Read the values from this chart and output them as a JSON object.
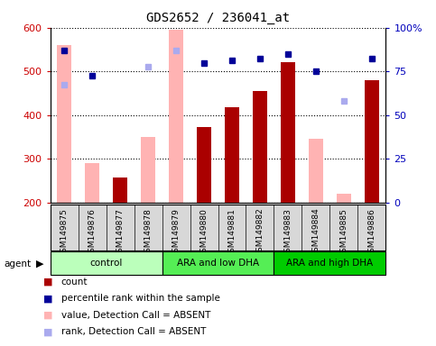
{
  "title": "GDS2652 / 236041_at",
  "samples": [
    "GSM149875",
    "GSM149876",
    "GSM149877",
    "GSM149878",
    "GSM149879",
    "GSM149880",
    "GSM149881",
    "GSM149882",
    "GSM149883",
    "GSM149884",
    "GSM149885",
    "GSM149886"
  ],
  "absent_value_bars": [
    560,
    290,
    null,
    350,
    595,
    null,
    null,
    null,
    null,
    345,
    220,
    null
  ],
  "present_value_bars": [
    null,
    null,
    258,
    null,
    null,
    373,
    418,
    455,
    522,
    null,
    null,
    480
  ],
  "absent_rank_dots": [
    470,
    null,
    null,
    510,
    548,
    null,
    null,
    null,
    null,
    null,
    432,
    null
  ],
  "present_rank_dots": [
    548,
    490,
    null,
    null,
    null,
    520,
    525,
    530,
    540,
    500,
    null,
    530
  ],
  "ylim_left": [
    200,
    600
  ],
  "yticks_left": [
    200,
    300,
    400,
    500,
    600
  ],
  "yticks_right": [
    0,
    25,
    50,
    75,
    100
  ],
  "right_tick_labels": [
    "0",
    "25",
    "50",
    "75",
    "100%"
  ],
  "absent_bar_color": "#ffb3b3",
  "present_bar_color": "#aa0000",
  "present_dot_color": "#000099",
  "absent_dot_color": "#aaaaee",
  "legend_items": [
    {
      "color": "#aa0000",
      "label": "count"
    },
    {
      "color": "#000099",
      "label": "percentile rank within the sample"
    },
    {
      "color": "#ffb3b3",
      "label": "value, Detection Call = ABSENT"
    },
    {
      "color": "#aaaaee",
      "label": "rank, Detection Call = ABSENT"
    }
  ],
  "group_defs": [
    {
      "start": 0,
      "end": 3,
      "label": "control",
      "color": "#bbffbb"
    },
    {
      "start": 4,
      "end": 7,
      "label": "ARA and low DHA",
      "color": "#55ee55"
    },
    {
      "start": 8,
      "end": 11,
      "label": "ARA and high DHA",
      "color": "#00cc00"
    }
  ],
  "ylabel_left_color": "#cc0000",
  "ylabel_right_color": "#0000bb"
}
